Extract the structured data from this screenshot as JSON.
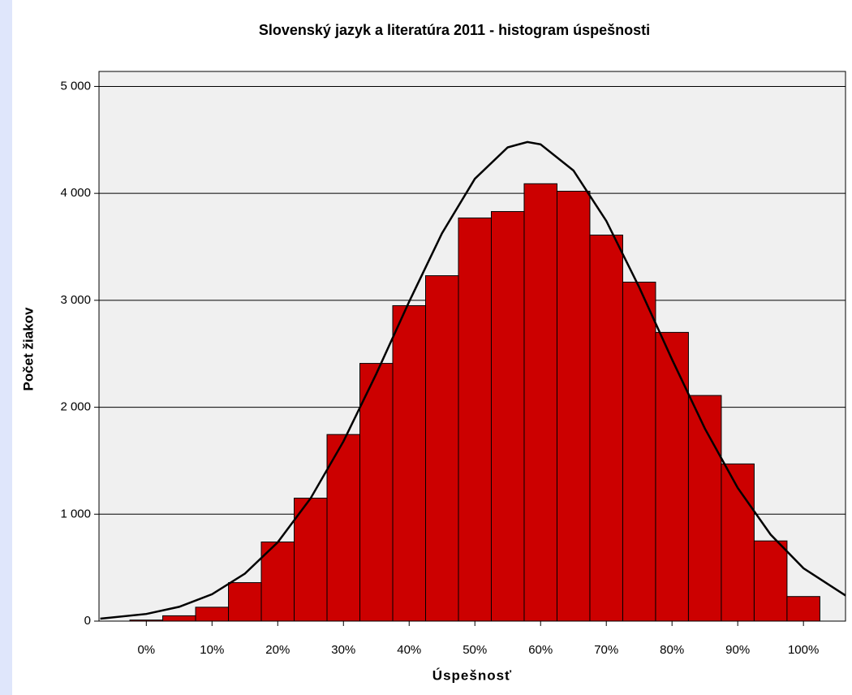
{
  "chart_data": {
    "type": "histogram",
    "title": "Slovenský jazyk a literatúra 2011 - histogram úspešnosti",
    "xlabel": "Úspešnosť",
    "ylabel": "Počet žiakov",
    "bins": [
      -2.5,
      2.5,
      7.5,
      12.5,
      17.5,
      22.5,
      27.5,
      32.5,
      37.5,
      42.5,
      47.5,
      52.5,
      57.5,
      62.5,
      67.5,
      72.5,
      77.5,
      82.5,
      87.5,
      92.5,
      97.5,
      102.5
    ],
    "values": [
      10,
      50,
      130,
      360,
      740,
      1150,
      1745,
      2410,
      2950,
      3230,
      3770,
      3830,
      4090,
      4020,
      3610,
      3170,
      2700,
      2110,
      1470,
      750,
      230
    ],
    "color": "#cc0000",
    "curve": {
      "color": "#000000",
      "x": [
        -7,
        0,
        5,
        10,
        15,
        20,
        25,
        30,
        35,
        40,
        45,
        50,
        55,
        58,
        60,
        65,
        70,
        75,
        80,
        85,
        90,
        95,
        100,
        106.4
      ],
      "y": [
        23,
        67,
        134,
        251,
        444,
        737,
        1149,
        1681,
        2313,
        2988,
        3627,
        4136,
        4430,
        4480,
        4458,
        4214,
        3742,
        3123,
        2447,
        1801,
        1245,
        809,
        494,
        240
      ]
    },
    "xlim": [
      -7.2,
      106.4
    ],
    "xticks": [
      {
        "value": 0,
        "label": "0%"
      },
      {
        "value": 10,
        "label": "10%"
      },
      {
        "value": 20,
        "label": "20%"
      },
      {
        "value": 30,
        "label": "30%"
      },
      {
        "value": 40,
        "label": "40%"
      },
      {
        "value": 50,
        "label": "50%"
      },
      {
        "value": 60,
        "label": "60%"
      },
      {
        "value": 70,
        "label": "70%"
      },
      {
        "value": 80,
        "label": "80%"
      },
      {
        "value": 90,
        "label": "90%"
      },
      {
        "value": 100,
        "label": "100%"
      }
    ],
    "ylim": [
      0,
      5140
    ],
    "yticks": [
      0,
      {
        "value": 1000,
        "label": "1 000"
      },
      {
        "value": 2000,
        "label": "2 000"
      },
      {
        "value": 3000,
        "label": "3 000"
      },
      {
        "value": 4000,
        "label": "4 000"
      },
      {
        "value": 5000,
        "label": "5 000"
      }
    ],
    "grid": true
  }
}
